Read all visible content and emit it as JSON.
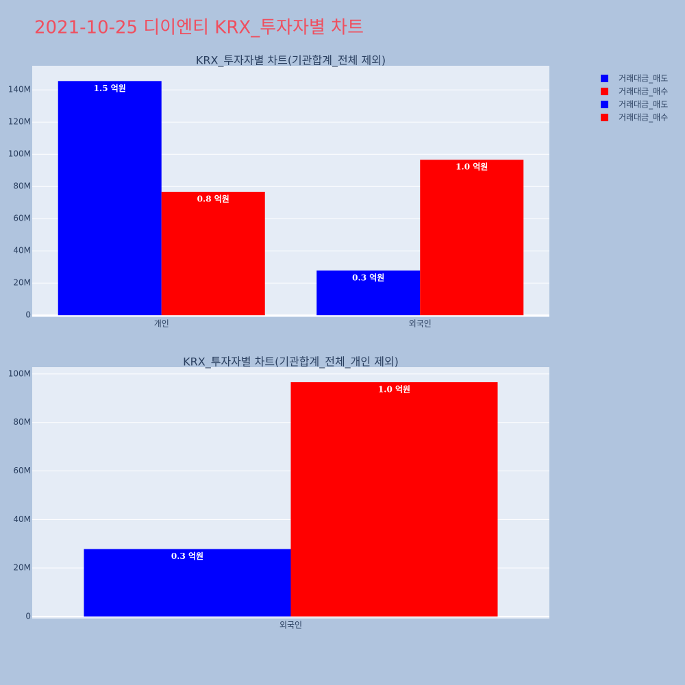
{
  "title": "2021-10-25 디이엔티 KRX_투자자별 차트",
  "chart_data": [
    {
      "type": "bar",
      "title": "KRX_투자자별 차트(기관합계_전체 제외)",
      "categories": [
        "개인",
        "외국인"
      ],
      "series": [
        {
          "name": "거래대금_매도",
          "color": "#0000ff",
          "values": [
            145500000,
            27800000
          ],
          "value_labels": [
            "1.5 억원",
            "0.3 억원"
          ]
        },
        {
          "name": "거래대금_매수",
          "color": "#ff0000",
          "values": [
            76700000,
            96600000
          ],
          "value_labels": [
            "0.8 억원",
            "1.0 억원"
          ]
        }
      ],
      "ylim": [
        -1200000,
        155000000
      ],
      "yticks": [
        0,
        {
          "value": 20000000,
          "label": "20M"
        },
        {
          "value": 40000000,
          "label": "40M"
        },
        {
          "value": 60000000,
          "label": "60M"
        },
        {
          "value": 80000000,
          "label": "80M"
        },
        {
          "value": 100000000,
          "label": "100M"
        },
        {
          "value": 120000000,
          "label": "120M"
        },
        {
          "value": 140000000,
          "label": "140M"
        }
      ],
      "grid": true
    },
    {
      "type": "bar",
      "title": "KRX_투자자별 차트(기관합계_전체_개인 제외)",
      "categories": [
        "외국인"
      ],
      "series": [
        {
          "name": "거래대금_매도",
          "color": "#0000ff",
          "values": [
            27800000
          ],
          "value_labels": [
            "0.3 억원"
          ]
        },
        {
          "name": "거래대금_매수",
          "color": "#ff0000",
          "values": [
            96600000
          ],
          "value_labels": [
            "1.0 억원"
          ]
        }
      ],
      "ylim": [
        -850000,
        102800000
      ],
      "yticks": [
        0,
        {
          "value": 20000000,
          "label": "20M"
        },
        {
          "value": 40000000,
          "label": "40M"
        },
        {
          "value": 60000000,
          "label": "60M"
        },
        {
          "value": 80000000,
          "label": "80M"
        },
        {
          "value": 100000000,
          "label": "100M"
        }
      ],
      "grid": true
    }
  ]
}
